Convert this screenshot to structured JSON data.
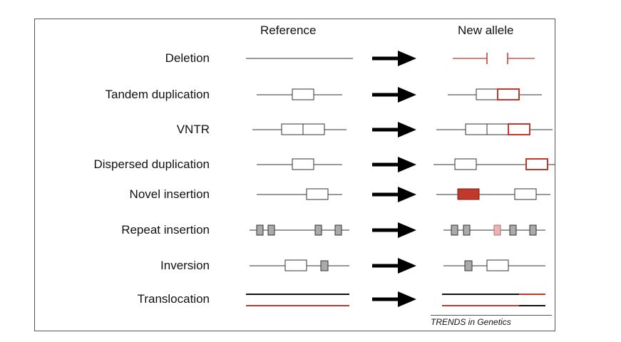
{
  "headers": {
    "reference": "Reference",
    "new_allele": "New allele"
  },
  "rows": [
    {
      "label": "Deletion"
    },
    {
      "label": "Tandem duplication"
    },
    {
      "label": "VNTR"
    },
    {
      "label": "Dispersed duplication"
    },
    {
      "label": "Novel insertion"
    },
    {
      "label": "Repeat insertion"
    },
    {
      "label": "Inversion"
    },
    {
      "label": "Translocation"
    }
  ],
  "credit": "TRENDS in Genetics",
  "colors": {
    "line": "#333333",
    "highlight": "#c0392b",
    "filled_red": "#c0392b",
    "repeat_gray": "#aaaaaa",
    "repeat_pink": "#e8b4b4",
    "arrow": "#000000"
  }
}
